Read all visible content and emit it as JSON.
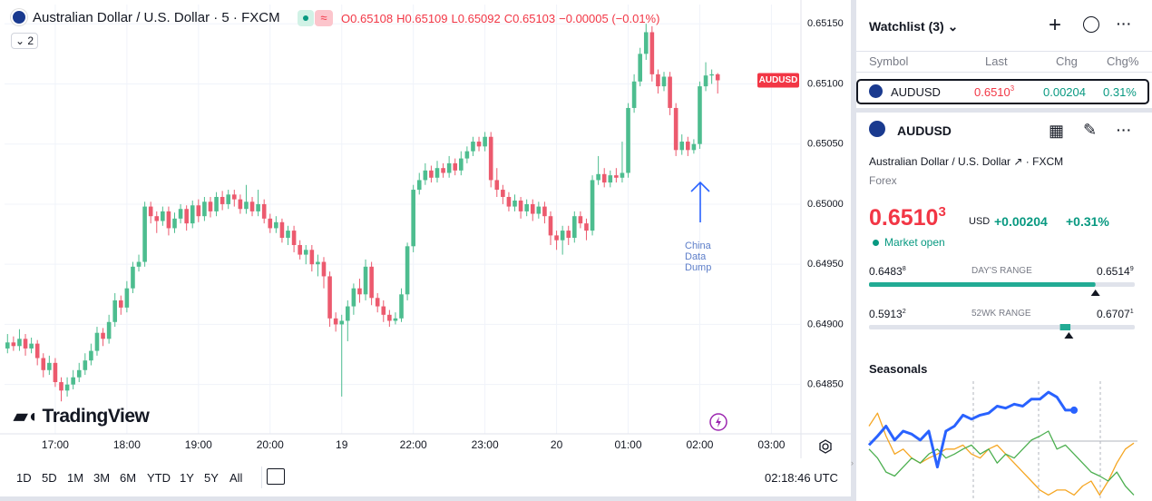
{
  "chart_data": [
    {
      "type": "candlestick",
      "title": "Australian Dollar / U.S. Dollar · 5 · FXCM",
      "ohlc_prefixes": [
        "O",
        "H",
        "L",
        "C"
      ],
      "change": {
        "value": -5e-05,
        "label": "−0.00005 (−0.01%)"
      },
      "indicators": 2,
      "up_color": "#4dbd8f",
      "down_color": "#ec5a6e",
      "grid": true,
      "last_label": "AUDUSD",
      "annotation": "China Data Dump",
      "brand": "TradingView",
      "xlim": [
        -0.5,
        132.8
      ],
      "xticks": [
        {
          "value": 8,
          "label": "17:00"
        },
        {
          "value": 20,
          "label": "18:00"
        },
        {
          "value": 32,
          "label": "19:00"
        },
        {
          "value": 44,
          "label": "20:00"
        },
        {
          "value": 56,
          "label": "19"
        },
        {
          "value": 68,
          "label": "22:00"
        },
        {
          "value": 80,
          "label": "23:00"
        },
        {
          "value": 92,
          "label": "20"
        },
        {
          "value": 104,
          "label": "01:00"
        },
        {
          "value": 116,
          "label": "02:00"
        },
        {
          "value": 128,
          "label": "03:00"
        }
      ],
      "ylim": [
        0.64809,
        0.65166
      ],
      "yticks": [
        {
          "value": 0.6485,
          "label": "0.64850"
        },
        {
          "value": 0.649,
          "label": "0.64900"
        },
        {
          "value": 0.6495,
          "label": "0.64950"
        },
        {
          "value": 0.65,
          "label": "0.65000"
        },
        {
          "value": 0.6505,
          "label": "0.65050"
        },
        {
          "value": 0.651,
          "label": "0.65100"
        },
        {
          "value": 0.6515,
          "label": "0.65150"
        }
      ],
      "candles": [
        [
          0.6488,
          0.64892,
          0.64876,
          0.64885
        ],
        [
          0.64885,
          0.6489,
          0.64878,
          0.64882
        ],
        [
          0.64882,
          0.64896,
          0.64878,
          0.64888
        ],
        [
          0.64888,
          0.64892,
          0.64874,
          0.6488
        ],
        [
          0.6488,
          0.64889,
          0.64876,
          0.64884
        ],
        [
          0.64884,
          0.64887,
          0.64866,
          0.64872
        ],
        [
          0.64872,
          0.64876,
          0.64856,
          0.64862
        ],
        [
          0.64862,
          0.64874,
          0.64858,
          0.64868
        ],
        [
          0.64868,
          0.64872,
          0.64848,
          0.64852
        ],
        [
          0.64852,
          0.64856,
          0.64836,
          0.64845
        ],
        [
          0.64845,
          0.64856,
          0.6484,
          0.6485
        ],
        [
          0.6485,
          0.64862,
          0.64846,
          0.64856
        ],
        [
          0.64856,
          0.64868,
          0.64852,
          0.64862
        ],
        [
          0.64862,
          0.64876,
          0.64858,
          0.6487
        ],
        [
          0.6487,
          0.64884,
          0.64866,
          0.64878
        ],
        [
          0.64878,
          0.64898,
          0.64874,
          0.64893
        ],
        [
          0.64893,
          0.64897,
          0.64882,
          0.64888
        ],
        [
          0.64888,
          0.64908,
          0.64884,
          0.64902
        ],
        [
          0.64902,
          0.64926,
          0.64898,
          0.6492
        ],
        [
          0.6492,
          0.64924,
          0.64908,
          0.64914
        ],
        [
          0.64914,
          0.64936,
          0.6491,
          0.6493
        ],
        [
          0.6493,
          0.64952,
          0.64926,
          0.64948
        ],
        [
          0.64948,
          0.64958,
          0.64944,
          0.64952
        ],
        [
          0.64952,
          0.65002,
          0.64948,
          0.64998
        ],
        [
          0.64998,
          0.65002,
          0.64984,
          0.6499
        ],
        [
          0.6499,
          0.64994,
          0.64976,
          0.64986
        ],
        [
          0.64986,
          0.64998,
          0.64982,
          0.64994
        ],
        [
          0.64994,
          0.64998,
          0.64974,
          0.6498
        ],
        [
          0.6498,
          0.64993,
          0.64976,
          0.64988
        ],
        [
          0.64988,
          0.65,
          0.64984,
          0.64996
        ],
        [
          0.64996,
          0.64999,
          0.64978,
          0.64984
        ],
        [
          0.64984,
          0.65003,
          0.6498,
          0.64999
        ],
        [
          0.64999,
          0.65004,
          0.64985,
          0.6499
        ],
        [
          0.6499,
          0.65006,
          0.64986,
          0.65002
        ],
        [
          0.65002,
          0.65006,
          0.64989,
          0.64994
        ],
        [
          0.64994,
          0.6501,
          0.6499,
          0.65006
        ],
        [
          0.65006,
          0.65011,
          0.64995,
          0.65
        ],
        [
          0.65,
          0.65012,
          0.64996,
          0.65008
        ],
        [
          0.65008,
          0.65012,
          0.64998,
          0.65004
        ],
        [
          0.65004,
          0.65008,
          0.64992,
          0.64996
        ],
        [
          0.64996,
          0.65016,
          0.64992,
          0.65002
        ],
        [
          0.65002,
          0.65006,
          0.6499,
          0.64994
        ],
        [
          0.64994,
          0.65012,
          0.6499,
          0.65
        ],
        [
          0.65,
          0.65004,
          0.64984,
          0.64988
        ],
        [
          0.64988,
          0.64992,
          0.64976,
          0.6498
        ],
        [
          0.6498,
          0.6499,
          0.64976,
          0.64985
        ],
        [
          0.64985,
          0.64988,
          0.64968,
          0.64972
        ],
        [
          0.64972,
          0.64982,
          0.64966,
          0.64978
        ],
        [
          0.64978,
          0.64982,
          0.6496,
          0.64966
        ],
        [
          0.64966,
          0.6497,
          0.64954,
          0.64958
        ],
        [
          0.64958,
          0.64966,
          0.6495,
          0.64962
        ],
        [
          0.64962,
          0.64966,
          0.64944,
          0.6495
        ],
        [
          0.6495,
          0.64958,
          0.6494,
          0.64952
        ],
        [
          0.64952,
          0.64956,
          0.6493,
          0.6494
        ],
        [
          0.6494,
          0.64944,
          0.64898,
          0.64905
        ],
        [
          0.64905,
          0.6491,
          0.64894,
          0.649
        ],
        [
          0.649,
          0.64908,
          0.6484,
          0.64903
        ],
        [
          0.64903,
          0.6492,
          0.64886,
          0.64915
        ],
        [
          0.64915,
          0.64934,
          0.64908,
          0.6493
        ],
        [
          0.6493,
          0.64938,
          0.64918,
          0.64925
        ],
        [
          0.64925,
          0.64954,
          0.6492,
          0.64948
        ],
        [
          0.64948,
          0.64952,
          0.64916,
          0.64922
        ],
        [
          0.64922,
          0.64926,
          0.6491,
          0.64915
        ],
        [
          0.64915,
          0.6492,
          0.64902,
          0.64908
        ],
        [
          0.64908,
          0.64912,
          0.64898,
          0.64903
        ],
        [
          0.64903,
          0.6491,
          0.649,
          0.64905
        ],
        [
          0.64905,
          0.6493,
          0.64902,
          0.64925
        ],
        [
          0.64925,
          0.64968,
          0.6492,
          0.64965
        ],
        [
          0.64965,
          0.65016,
          0.6496,
          0.65012
        ],
        [
          0.65012,
          0.65026,
          0.65008,
          0.6502
        ],
        [
          0.6502,
          0.65034,
          0.65016,
          0.65028
        ],
        [
          0.65028,
          0.65032,
          0.65018,
          0.65022
        ],
        [
          0.65022,
          0.65036,
          0.65018,
          0.6503
        ],
        [
          0.6503,
          0.65034,
          0.65022,
          0.65026
        ],
        [
          0.65026,
          0.6504,
          0.65022,
          0.65034
        ],
        [
          0.65034,
          0.65038,
          0.65024,
          0.65028
        ],
        [
          0.65028,
          0.65044,
          0.65024,
          0.65038
        ],
        [
          0.65038,
          0.65048,
          0.65034,
          0.65044
        ],
        [
          0.65044,
          0.65056,
          0.6504,
          0.65052
        ],
        [
          0.65052,
          0.65056,
          0.65044,
          0.65048
        ],
        [
          0.65048,
          0.6506,
          0.65044,
          0.65056
        ],
        [
          0.65056,
          0.6506,
          0.65014,
          0.6502
        ],
        [
          0.6502,
          0.6503,
          0.65006,
          0.65012
        ],
        [
          0.65012,
          0.65016,
          0.65,
          0.65006
        ],
        [
          0.65006,
          0.6501,
          0.64994,
          0.64998
        ],
        [
          0.64998,
          0.65008,
          0.64994,
          0.65003
        ],
        [
          0.65003,
          0.65006,
          0.64988,
          0.64994
        ],
        [
          0.64994,
          0.65004,
          0.6499,
          0.65
        ],
        [
          0.65,
          0.65004,
          0.64986,
          0.64992
        ],
        [
          0.64992,
          0.65002,
          0.64988,
          0.64998
        ],
        [
          0.64998,
          0.65002,
          0.64984,
          0.6499
        ],
        [
          0.6499,
          0.64994,
          0.64966,
          0.64974
        ],
        [
          0.64974,
          0.64978,
          0.64962,
          0.6497
        ],
        [
          0.6497,
          0.64982,
          0.64958,
          0.64978
        ],
        [
          0.64978,
          0.64982,
          0.64966,
          0.64972
        ],
        [
          0.64972,
          0.64994,
          0.64968,
          0.6499
        ],
        [
          0.6499,
          0.64994,
          0.6498,
          0.64984
        ],
        [
          0.64984,
          0.64988,
          0.6497,
          0.64978
        ],
        [
          0.64978,
          0.65024,
          0.64974,
          0.6502
        ],
        [
          0.6502,
          0.6504,
          0.65016,
          0.65025
        ],
        [
          0.65025,
          0.6503,
          0.65014,
          0.65018
        ],
        [
          0.65018,
          0.65028,
          0.65014,
          0.65024
        ],
        [
          0.65024,
          0.6503,
          0.65018,
          0.65022
        ],
        [
          0.65022,
          0.65052,
          0.65018,
          0.65026
        ],
        [
          0.65026,
          0.65084,
          0.65022,
          0.6508
        ],
        [
          0.6508,
          0.65108,
          0.65076,
          0.65102
        ],
        [
          0.65102,
          0.6513,
          0.65098,
          0.65125
        ],
        [
          0.65125,
          0.6515,
          0.6512,
          0.65143
        ],
        [
          0.65143,
          0.65148,
          0.65102,
          0.65108
        ],
        [
          0.65108,
          0.65112,
          0.65092,
          0.65098
        ],
        [
          0.65098,
          0.6511,
          0.65094,
          0.65106
        ],
        [
          0.65106,
          0.6511,
          0.65074,
          0.6508
        ],
        [
          0.6508,
          0.65084,
          0.6504,
          0.65045
        ],
        [
          0.65045,
          0.65058,
          0.65041,
          0.65052
        ],
        [
          0.65052,
          0.65056,
          0.6504,
          0.65045
        ],
        [
          0.65045,
          0.65054,
          0.65042,
          0.6505
        ],
        [
          0.6505,
          0.65102,
          0.65046,
          0.65098
        ],
        [
          0.65098,
          0.65118,
          0.65094,
          0.65107
        ],
        [
          0.65107,
          0.65112,
          0.651,
          0.65108
        ],
        [
          0.65108,
          0.65109,
          0.65092,
          0.65103
        ]
      ]
    },
    {
      "type": "line",
      "title": "Seasonals",
      "ylim": [
        -6,
        6
      ],
      "series": [
        {
          "color": "#2962ff",
          "values": [
            -0.4,
            0.5,
            1.5,
            0.1,
            1.0,
            0.7,
            0.1,
            1.0,
            -2.6,
            1.0,
            1.5,
            2.6,
            2.2,
            2.6,
            2.8,
            3.5,
            3.3,
            3.7,
            3.5,
            4.2,
            4.2,
            4.9,
            4.4,
            3.1,
            3.1
          ]
        },
        {
          "color": "#f5a623",
          "values": [
            1.5,
            2.8,
            0.5,
            -1.3,
            -0.8,
            -1.7,
            -2.2,
            -1.7,
            -1.3,
            -0.8,
            -0.8,
            -0.4,
            -1.3,
            -1.7,
            -0.8,
            -0.4,
            -1.3,
            -2.2,
            -3.1,
            -4.0,
            -4.9,
            -5.4,
            -4.9,
            -4.9,
            -5.4,
            -4.5,
            -4.0,
            -5.4,
            -4.0,
            -2.2,
            -0.8,
            -0.2
          ]
        },
        {
          "color": "#4caf50",
          "values": [
            -0.8,
            -1.7,
            -3.1,
            -3.5,
            -2.6,
            -1.7,
            -2.2,
            -1.3,
            -0.8,
            -1.7,
            -1.3,
            -0.8,
            -0.4,
            -1.3,
            -0.8,
            -2.2,
            -1.3,
            -1.7,
            -0.8,
            0.1,
            0.5,
            1.0,
            -0.8,
            -0.4,
            -1.3,
            -2.2,
            -3.1,
            -3.5,
            -4.0,
            -3.1,
            -4.5,
            -5.4
          ]
        }
      ]
    }
  ],
  "watchlist": {
    "title": "Watchlist (3)",
    "columns": [
      "Symbol",
      "Last",
      "Chg",
      "Chg%"
    ],
    "rows": [
      {
        "symbol": "AUDUSD",
        "last": 0.65103,
        "chg": 0.00204,
        "chg_pct": {
          "value": 0.31,
          "label": "0.31%"
        }
      }
    ]
  },
  "details": {
    "symbol": "AUDUSD",
    "name": "Australian Dollar / U.S. Dollar",
    "exchange": "FXCM",
    "market": "Forex",
    "last": 0.65103,
    "currency": "USD",
    "change": {
      "value": 0.00204,
      "label": "+0.00204"
    },
    "change_pct": {
      "value": 0.31,
      "label": "+0.31%"
    },
    "status": "Market open",
    "day_range": {
      "label": "DAY'S RANGE",
      "low": 0.64838,
      "high": 0.65149
    },
    "year_range": {
      "label": "52WK RANGE",
      "low": 0.59132,
      "high": 0.67071
    }
  },
  "toolbar": {
    "ranges": [
      "1D",
      "5D",
      "1M",
      "3M",
      "6M",
      "YTD",
      "1Y",
      "5Y",
      "All"
    ],
    "clock": "02:18:46 UTC"
  }
}
